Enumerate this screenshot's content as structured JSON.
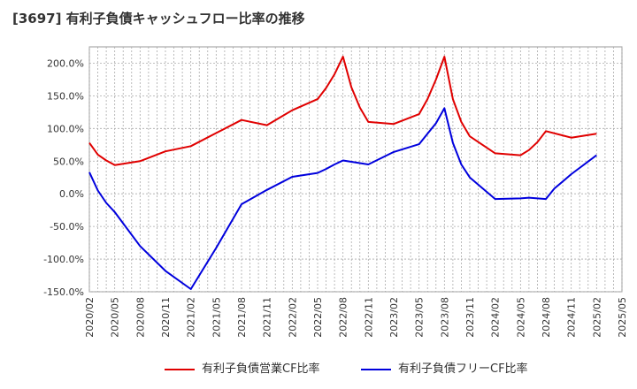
{
  "chart_data": {
    "type": "line",
    "title": "[3697]  有利子負債キャッシュフロー比率の推移",
    "xlabel": "",
    "ylabel": "",
    "ylim": [
      -150,
      225
    ],
    "yticks": [
      200,
      150,
      100,
      50,
      0,
      -50,
      -100,
      -150
    ],
    "ytick_labels": [
      "200.0%",
      "150.0%",
      "100.0%",
      "50.0%",
      "0.0%",
      "-50.0%",
      "-100.0%",
      "-150.0%"
    ],
    "xticks": [
      "2020/02",
      "2020/05",
      "2020/08",
      "2020/11",
      "2021/02",
      "2021/05",
      "2021/08",
      "2021/11",
      "2022/02",
      "2022/05",
      "2022/08",
      "2022/11",
      "2023/02",
      "2023/05",
      "2023/08",
      "2023/11",
      "2024/02",
      "2024/05",
      "2024/08",
      "2024/11",
      "2025/02",
      "2025/05"
    ],
    "grid": true,
    "legend_position": "bottom",
    "series": [
      {
        "name": "有利子負債営業CF比率",
        "color": "#e00000",
        "x": [
          "2020/02",
          "2020/03",
          "2020/04",
          "2020/05",
          "2020/08",
          "2020/11",
          "2021/02",
          "2021/05",
          "2021/08",
          "2021/11",
          "2022/02",
          "2022/05",
          "2022/06",
          "2022/07",
          "2022/08",
          "2022/09",
          "2022/10",
          "2022/11",
          "2023/02",
          "2023/05",
          "2023/06",
          "2023/07",
          "2023/08",
          "2023/09",
          "2023/10",
          "2023/11",
          "2024/02",
          "2024/05",
          "2024/06",
          "2024/07",
          "2024/08",
          "2024/11",
          "2025/02"
        ],
        "values": [
          78,
          60,
          51,
          44,
          50,
          65,
          73,
          93,
          113,
          105,
          128,
          145,
          162,
          183,
          210,
          163,
          132,
          110,
          107,
          122,
          145,
          175,
          210,
          145,
          110,
          88,
          62,
          59,
          67,
          79,
          96,
          86,
          92
        ]
      },
      {
        "name": "有利子負債フリーCF比率",
        "color": "#0000dd",
        "x": [
          "2020/02",
          "2020/03",
          "2020/04",
          "2020/05",
          "2020/08",
          "2020/11",
          "2021/02",
          "2021/05",
          "2021/08",
          "2021/11",
          "2022/02",
          "2022/05",
          "2022/06",
          "2022/07",
          "2022/08",
          "2022/09",
          "2022/10",
          "2022/11",
          "2023/02",
          "2023/05",
          "2023/06",
          "2023/07",
          "2023/08",
          "2023/09",
          "2023/10",
          "2023/11",
          "2024/02",
          "2024/05",
          "2024/06",
          "2024/07",
          "2024/08",
          "2024/09",
          "2024/11",
          "2025/02"
        ],
        "values": [
          33,
          5,
          -14,
          -28,
          -80,
          -118,
          -146,
          -83,
          -16,
          6,
          26,
          32,
          38,
          45,
          51,
          49,
          47,
          45,
          64,
          76,
          92,
          108,
          131,
          78,
          45,
          25,
          -8,
          -7,
          -6,
          -7,
          -8,
          8,
          30,
          59
        ]
      }
    ]
  }
}
